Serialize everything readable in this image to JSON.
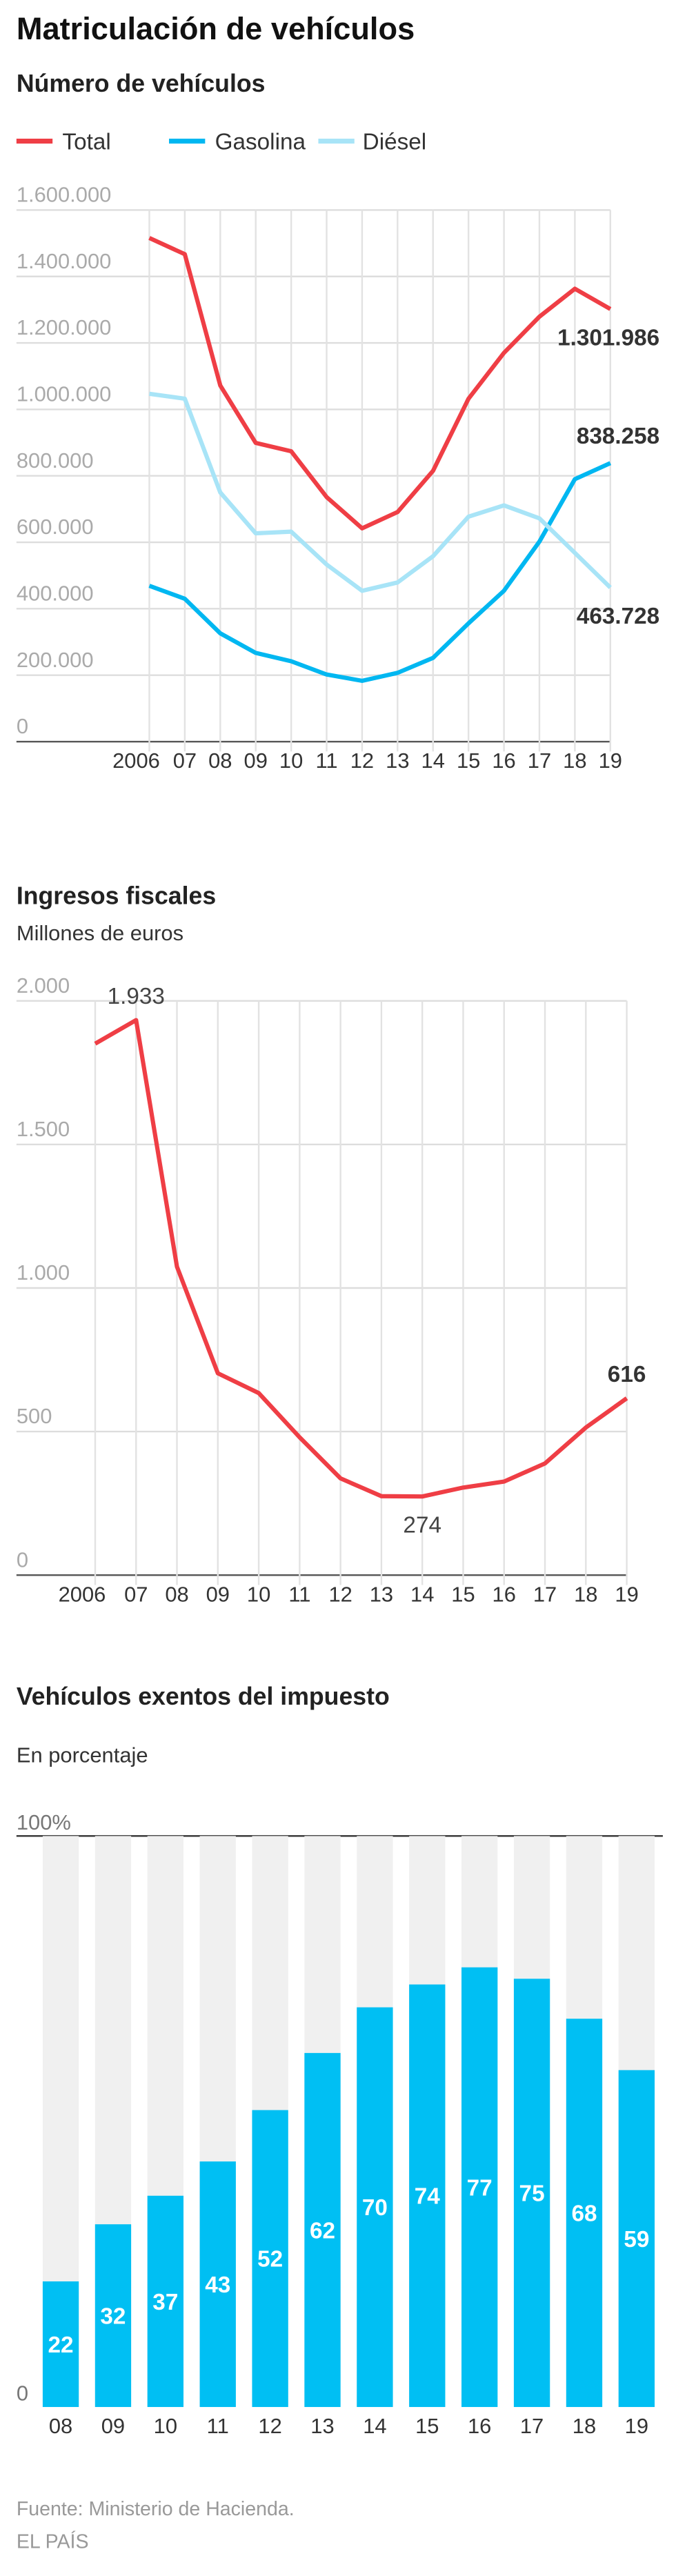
{
  "title": "Matriculación de vehículos",
  "chart_data": [
    {
      "type": "line",
      "title": "Número de vehículos",
      "categories": [
        "2006",
        "07",
        "08",
        "09",
        "10",
        "11",
        "12",
        "13",
        "14",
        "15",
        "16",
        "17",
        "18",
        "19"
      ],
      "series": [
        {
          "name": "Total",
          "color": "#ef3e45",
          "values": [
            1516000,
            1467000,
            1072000,
            899000,
            874000,
            736000,
            642000,
            691000,
            815000,
            1032000,
            1170000,
            1279000,
            1363000,
            1301986
          ],
          "value_labels": [
            null,
            null,
            null,
            null,
            null,
            null,
            null,
            null,
            null,
            null,
            null,
            null,
            null,
            "1.301.986"
          ]
        },
        {
          "name": "Gasolina",
          "color": "#00b7f1",
          "values": [
            469000,
            430000,
            326000,
            267000,
            242000,
            202000,
            183000,
            207000,
            252000,
            356000,
            454000,
            602000,
            790000,
            838258
          ],
          "value_labels": [
            null,
            null,
            null,
            null,
            null,
            null,
            null,
            null,
            null,
            null,
            null,
            null,
            null,
            "838.258"
          ]
        },
        {
          "name": "Diésel",
          "color": "#a8e4f7",
          "values": [
            1047000,
            1032000,
            750000,
            627000,
            632000,
            533000,
            454000,
            479000,
            558000,
            677000,
            711000,
            672000,
            568000,
            463728
          ],
          "value_labels": [
            null,
            null,
            null,
            null,
            null,
            null,
            null,
            null,
            null,
            null,
            null,
            null,
            null,
            "463.728"
          ]
        }
      ],
      "ylim": [
        0,
        1600000
      ],
      "yticks": [
        0,
        {
          "value": 200000,
          "label": "200.000"
        },
        {
          "value": 400000,
          "label": "400.000"
        },
        {
          "value": 600000,
          "label": "600.000"
        },
        {
          "value": 800000,
          "label": "800.000"
        },
        {
          "value": 1000000,
          "label": "1.000.000"
        },
        {
          "value": 1200000,
          "label": "1.200.000"
        },
        {
          "value": 1400000,
          "label": "1.400.000"
        },
        {
          "value": 1600000,
          "label": "1.600.000"
        }
      ],
      "grid": true,
      "legend": "top"
    },
    {
      "type": "line",
      "title": "Ingresos fiscales",
      "subtitle": "Millones de euros",
      "categories": [
        "2006",
        "07",
        "08",
        "09",
        "10",
        "11",
        "12",
        "13",
        "14",
        "15",
        "16",
        "17",
        "18",
        "19"
      ],
      "series": [
        {
          "color": "#ef3e45",
          "values": [
            1851,
            1933,
            1074,
            703,
            634,
            480,
            337,
            275,
            274,
            305,
            326,
            389,
            514,
            616
          ],
          "value_labels": [
            null,
            "1.933",
            null,
            null,
            null,
            null,
            null,
            null,
            "274",
            null,
            null,
            null,
            null,
            "616"
          ]
        }
      ],
      "ylim": [
        0,
        2000
      ],
      "yticks": [
        0,
        500,
        {
          "value": 1000,
          "label": "1.000"
        },
        {
          "value": 1500,
          "label": "1.500"
        },
        {
          "value": 2000,
          "label": "2.000"
        }
      ],
      "grid": true
    },
    {
      "type": "bar",
      "title": "Vehículos exentos del impuesto",
      "subtitle": "En porcentaje",
      "categories": [
        "08",
        "09",
        "10",
        "11",
        "12",
        "13",
        "14",
        "15",
        "16",
        "17",
        "18",
        "19"
      ],
      "values": [
        22,
        32,
        37,
        43,
        52,
        62,
        70,
        74,
        77,
        75,
        68,
        59
      ],
      "color": "#00bff3",
      "ylim": [
        0,
        100
      ],
      "yticks": [
        0,
        {
          "value": 100,
          "label": "100%"
        }
      ]
    }
  ],
  "source": [
    "Fuente: Ministerio de Hacienda.",
    "EL PAÍS"
  ]
}
